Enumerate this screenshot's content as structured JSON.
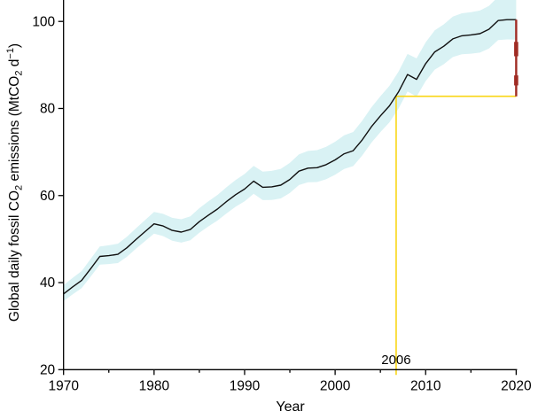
{
  "chart_data": {
    "type": "line",
    "title": "",
    "xlabel": "Year",
    "ylabel": "Global daily fossil CO2 emissions (MtCO2 d−1)",
    "ylabel_parts": [
      {
        "text": "Global daily fossil CO"
      },
      {
        "text": "2",
        "script": "sub"
      },
      {
        "text": " emissions (MtCO"
      },
      {
        "text": "2",
        "script": "sub"
      },
      {
        "text": " d"
      },
      {
        "text": "−1",
        "script": "sup"
      },
      {
        "text": ")"
      }
    ],
    "xlim": [
      1970,
      2020.1
    ],
    "ylim": [
      20,
      100
    ],
    "xticks": [
      1970,
      1980,
      1990,
      2000,
      2010,
      2020
    ],
    "xticks_minor": [
      1975,
      1985,
      1995,
      2005,
      2015
    ],
    "yticks": [
      20,
      40,
      60,
      80,
      100
    ],
    "grid": false,
    "legend": "none",
    "colors": {
      "line": "#101010",
      "band": "#d9f2f4",
      "reference": "#f9d616",
      "drop": "#a02c24",
      "axis": "#000000"
    },
    "series": [
      {
        "name": "global-daily-fossil-co2-emissions",
        "color": "#101010",
        "x": [
          1970,
          1971,
          1972,
          1973,
          1974,
          1975,
          1976,
          1977,
          1978,
          1979,
          1980,
          1981,
          1982,
          1983,
          1984,
          1985,
          1986,
          1987,
          1988,
          1989,
          1990,
          1991,
          1992,
          1993,
          1994,
          1995,
          1996,
          1997,
          1998,
          1999,
          2000,
          2001,
          2002,
          2003,
          2004,
          2005,
          2006,
          2007,
          2008,
          2009,
          2010,
          2011,
          2012,
          2013,
          2014,
          2015,
          2016,
          2017,
          2018,
          2019,
          2020
        ],
        "values": [
          37.4,
          39.0,
          40.5,
          43.2,
          46.0,
          46.2,
          46.5,
          48.0,
          49.9,
          51.7,
          53.5,
          53.0,
          52.0,
          51.6,
          52.2,
          54.0,
          55.5,
          56.9,
          58.6,
          60.2,
          61.5,
          63.3,
          61.9,
          62.0,
          62.4,
          63.7,
          65.6,
          66.3,
          66.4,
          67.1,
          68.2,
          69.6,
          70.3,
          72.8,
          75.8,
          78.3,
          80.6,
          83.8,
          87.8,
          86.7,
          90.3,
          93.0,
          94.3,
          96.0,
          96.7,
          96.9,
          97.2,
          98.2,
          100.2,
          100.4,
          100.4
        ]
      }
    ],
    "uncertainty_band": {
      "color": "#d9f2f4",
      "halfwidth_start": 1.8,
      "halfwidth_end": 5.0,
      "upper_factor": 1.12,
      "lower_factor": 0.92
    },
    "reference_lines": {
      "color": "#f9d616",
      "year": 2006.74,
      "value": 82.8,
      "annotation": "2006"
    },
    "drop_2020": {
      "color": "#a02c24",
      "x": 2020.0,
      "from": 100.4,
      "to": 82.8,
      "thick_segments": [
        [
          92.0,
          95.3
        ],
        [
          85.3,
          87.6
        ]
      ]
    }
  }
}
